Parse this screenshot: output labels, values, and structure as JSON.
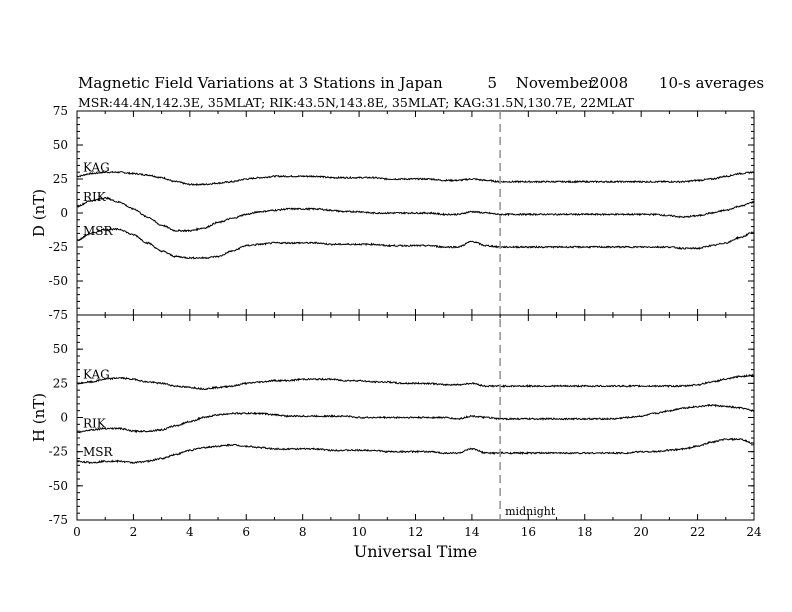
{
  "header": {
    "title": "Magnetic Field Variations at 3 Stations in Japan",
    "day": "5",
    "month": "November",
    "year": "2008",
    "averaging": "10-s averages",
    "stations_line": "MSR:44.4N,142.3E, 35MLAT;  RIK:43.5N,143.8E, 35MLAT;  KAG:31.5N,130.7E, 22MLAT"
  },
  "chart_data": [
    {
      "type": "line",
      "ylabel": "D (nT)",
      "xlim": [
        0,
        24
      ],
      "ylim": [
        -75,
        75
      ],
      "yticks": [
        75,
        50,
        25,
        0,
        -25,
        -50,
        -75
      ],
      "grid": false,
      "x": [
        0,
        0.5,
        1,
        1.5,
        2,
        2.5,
        3,
        3.5,
        4,
        4.5,
        5,
        5.5,
        6,
        6.5,
        7,
        7.5,
        8,
        8.5,
        9,
        9.5,
        10,
        10.5,
        11,
        11.5,
        12,
        12.5,
        13,
        13.5,
        14,
        14.5,
        15,
        15.5,
        16,
        16.5,
        17,
        17.5,
        18,
        18.5,
        19,
        19.5,
        20,
        20.5,
        21,
        21.5,
        22,
        22.5,
        23,
        23.5,
        24
      ],
      "series": [
        {
          "name": "KAG",
          "values": [
            27,
            29,
            30,
            30,
            29,
            28,
            26,
            23,
            21,
            21,
            22,
            23,
            25,
            26,
            27,
            27,
            27,
            27,
            26,
            26,
            26,
            26,
            25,
            25,
            25,
            25,
            24,
            24,
            25,
            24,
            23,
            23,
            23,
            23,
            23,
            23,
            23,
            23,
            23,
            23,
            23,
            23,
            23,
            23,
            24,
            25,
            27,
            29,
            30
          ]
        },
        {
          "name": "RIK",
          "values": [
            5,
            9,
            11,
            8,
            3,
            -3,
            -9,
            -13,
            -13,
            -11,
            -7,
            -4,
            -1,
            1,
            2,
            3,
            3,
            3,
            2,
            1,
            1,
            0,
            0,
            0,
            0,
            0,
            -1,
            -1,
            1,
            0,
            -1,
            -1,
            -1,
            -1,
            -1,
            -1,
            -1,
            -1,
            -1,
            -1,
            -1,
            -1,
            -2,
            -3,
            -2,
            0,
            2,
            5,
            8
          ]
        },
        {
          "name": "MSR",
          "values": [
            -20,
            -15,
            -12,
            -12,
            -16,
            -22,
            -28,
            -32,
            -33,
            -33,
            -32,
            -28,
            -24,
            -23,
            -22,
            -22,
            -22,
            -22,
            -23,
            -23,
            -23,
            -23,
            -24,
            -24,
            -24,
            -24,
            -25,
            -25,
            -21,
            -24,
            -25,
            -25,
            -25,
            -25,
            -25,
            -25,
            -25,
            -25,
            -25,
            -25,
            -25,
            -25,
            -25,
            -26,
            -26,
            -24,
            -22,
            -18,
            -14
          ]
        }
      ]
    },
    {
      "type": "line",
      "xlabel": "Universal Time",
      "ylabel": "H (nT)",
      "xlim": [
        0,
        24
      ],
      "ylim": [
        -75,
        75
      ],
      "xticks": [
        0,
        2,
        4,
        6,
        8,
        10,
        12,
        14,
        16,
        18,
        20,
        22,
        24
      ],
      "yticks": [
        75,
        50,
        25,
        0,
        -25,
        -50,
        -75
      ],
      "grid": false,
      "x": [
        0,
        0.5,
        1,
        1.5,
        2,
        2.5,
        3,
        3.5,
        4,
        4.5,
        5,
        5.5,
        6,
        6.5,
        7,
        7.5,
        8,
        8.5,
        9,
        9.5,
        10,
        10.5,
        11,
        11.5,
        12,
        12.5,
        13,
        13.5,
        14,
        14.5,
        15,
        15.5,
        16,
        16.5,
        17,
        17.5,
        18,
        18.5,
        19,
        19.5,
        20,
        20.5,
        21,
        21.5,
        22,
        22.5,
        23,
        23.5,
        24
      ],
      "series": [
        {
          "name": "KAG",
          "values": [
            25,
            26,
            28,
            29,
            28,
            26,
            25,
            23,
            22,
            21,
            22,
            23,
            25,
            26,
            27,
            27,
            28,
            28,
            28,
            27,
            27,
            26,
            26,
            25,
            25,
            25,
            24,
            24,
            25,
            23,
            23,
            23,
            23,
            23,
            23,
            23,
            23,
            23,
            23,
            23,
            23,
            23,
            23,
            23,
            24,
            26,
            28,
            30,
            31
          ]
        },
        {
          "name": "RIK",
          "values": [
            -11,
            -9,
            -8,
            -8,
            -10,
            -10,
            -9,
            -6,
            -3,
            0,
            2,
            3,
            3,
            3,
            2,
            1,
            1,
            1,
            1,
            1,
            0,
            0,
            0,
            0,
            0,
            0,
            0,
            -1,
            1,
            0,
            -1,
            -1,
            -1,
            -1,
            -1,
            -1,
            -1,
            -1,
            -1,
            0,
            1,
            3,
            5,
            7,
            8,
            9,
            8,
            7,
            5
          ]
        },
        {
          "name": "MSR",
          "values": [
            -32,
            -33,
            -32,
            -32,
            -33,
            -32,
            -30,
            -27,
            -24,
            -22,
            -21,
            -20,
            -21,
            -22,
            -23,
            -23,
            -23,
            -23,
            -24,
            -24,
            -24,
            -24,
            -25,
            -25,
            -25,
            -25,
            -26,
            -26,
            -23,
            -26,
            -26,
            -26,
            -26,
            -26,
            -26,
            -26,
            -26,
            -26,
            -26,
            -26,
            -25,
            -25,
            -24,
            -23,
            -21,
            -18,
            -16,
            -16,
            -19
          ]
        }
      ]
    }
  ],
  "annotation": {
    "marker_x": 15,
    "marker_label": "midnight"
  }
}
